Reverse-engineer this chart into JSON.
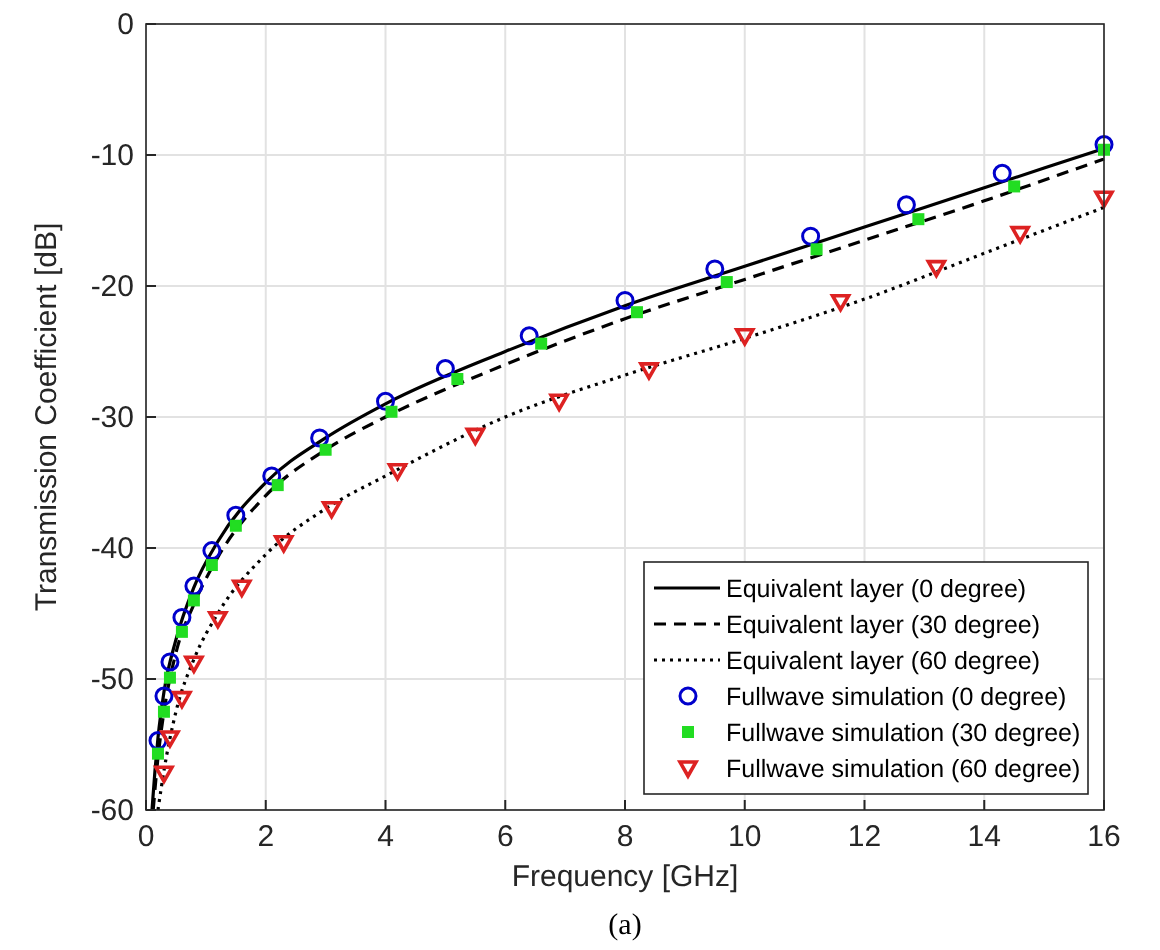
{
  "chart_data": {
    "type": "line",
    "xlabel": "Frequency [GHz]",
    "ylabel": "Transmission Coefficient [dB]",
    "xlim": [
      0,
      16
    ],
    "ylim": [
      -60,
      0
    ],
    "xticks": [
      0,
      2,
      4,
      6,
      8,
      10,
      12,
      14,
      16
    ],
    "yticks": [
      -60,
      -50,
      -40,
      -30,
      -20,
      -10,
      0
    ],
    "grid": true,
    "legend": "bottom right",
    "annotations": [
      "(a)"
    ],
    "series": [
      {
        "name": "Equivalent layer (0 degree)",
        "color": "#000000",
        "line_style": "solid",
        "marker": "none",
        "x": [
          0.1,
          0.15,
          0.2,
          0.3,
          0.5,
          0.8,
          1.2,
          2,
          3,
          4,
          6,
          8,
          10,
          12,
          14,
          16
        ],
        "values": [
          -60,
          -57,
          -54.5,
          -51,
          -47,
          -43,
          -39.5,
          -35,
          -31.6,
          -29,
          -25,
          -21.5,
          -18.5,
          -15.5,
          -12.5,
          -9.5
        ]
      },
      {
        "name": "Equivalent layer (30 degree)",
        "color": "#000000",
        "line_style": "dashed",
        "marker": "none",
        "x": [
          0.12,
          0.2,
          0.3,
          0.5,
          0.8,
          1.2,
          2,
          3,
          4,
          6,
          8,
          10,
          12,
          14,
          16
        ],
        "values": [
          -60,
          -56,
          -52.5,
          -48,
          -44.3,
          -40.7,
          -36,
          -32.5,
          -30,
          -26,
          -22.5,
          -19.5,
          -16.5,
          -13.5,
          -10.3
        ]
      },
      {
        "name": "Equivalent layer (60 degree)",
        "color": "#000000",
        "line_style": "dotted",
        "marker": "none",
        "x": [
          0.2,
          0.3,
          0.5,
          0.8,
          1.2,
          2,
          3,
          4,
          6,
          8,
          10,
          12,
          14,
          16
        ],
        "values": [
          -60,
          -57,
          -52.5,
          -48.5,
          -45,
          -40.5,
          -37,
          -34.5,
          -30,
          -26.8,
          -24,
          -21,
          -17.5,
          -14
        ]
      },
      {
        "name": "Fullwave simulation (0 degree)",
        "color": "#0000cc",
        "type": "scatter",
        "marker": "circle",
        "x": [
          0.2,
          0.3,
          0.4,
          0.6,
          0.8,
          1.1,
          1.5,
          2.1,
          2.9,
          4,
          5,
          6.4,
          8,
          9.5,
          11.1,
          12.7,
          14.3,
          16
        ],
        "values": [
          -54.7,
          -51.3,
          -48.7,
          -45.3,
          -42.9,
          -40.2,
          -37.5,
          -34.5,
          -31.6,
          -28.8,
          -26.3,
          -23.8,
          -21.1,
          -18.7,
          -16.2,
          -13.8,
          -11.4,
          -9.2
        ]
      },
      {
        "name": "Fullwave simulation (30 degree)",
        "color": "#22dd22",
        "type": "scatter",
        "marker": "square",
        "x": [
          0.2,
          0.3,
          0.4,
          0.6,
          0.8,
          1.1,
          1.5,
          2.2,
          3,
          4.1,
          5.2,
          6.6,
          8.2,
          9.7,
          11.2,
          12.9,
          14.5,
          16
        ],
        "values": [
          -55.7,
          -52.5,
          -49.9,
          -46.4,
          -44,
          -41.3,
          -38.3,
          -35.2,
          -32.5,
          -29.6,
          -27.1,
          -24.4,
          -22,
          -19.7,
          -17.2,
          -14.9,
          -12.4,
          -9.6
        ]
      },
      {
        "name": "Fullwave simulation (60 degree)",
        "color": "#dd2222",
        "type": "scatter",
        "marker": "triangle",
        "x": [
          0.3,
          0.4,
          0.6,
          0.8,
          1.2,
          1.6,
          2.3,
          3.1,
          4.2,
          5.5,
          6.9,
          8.4,
          10,
          11.6,
          13.2,
          14.6,
          16
        ],
        "values": [
          -57.2,
          -54.5,
          -51.5,
          -48.8,
          -45.4,
          -43,
          -39.6,
          -37,
          -34.1,
          -31.4,
          -28.8,
          -26.4,
          -23.8,
          -21.2,
          -18.6,
          -16,
          -13.3
        ]
      }
    ]
  }
}
